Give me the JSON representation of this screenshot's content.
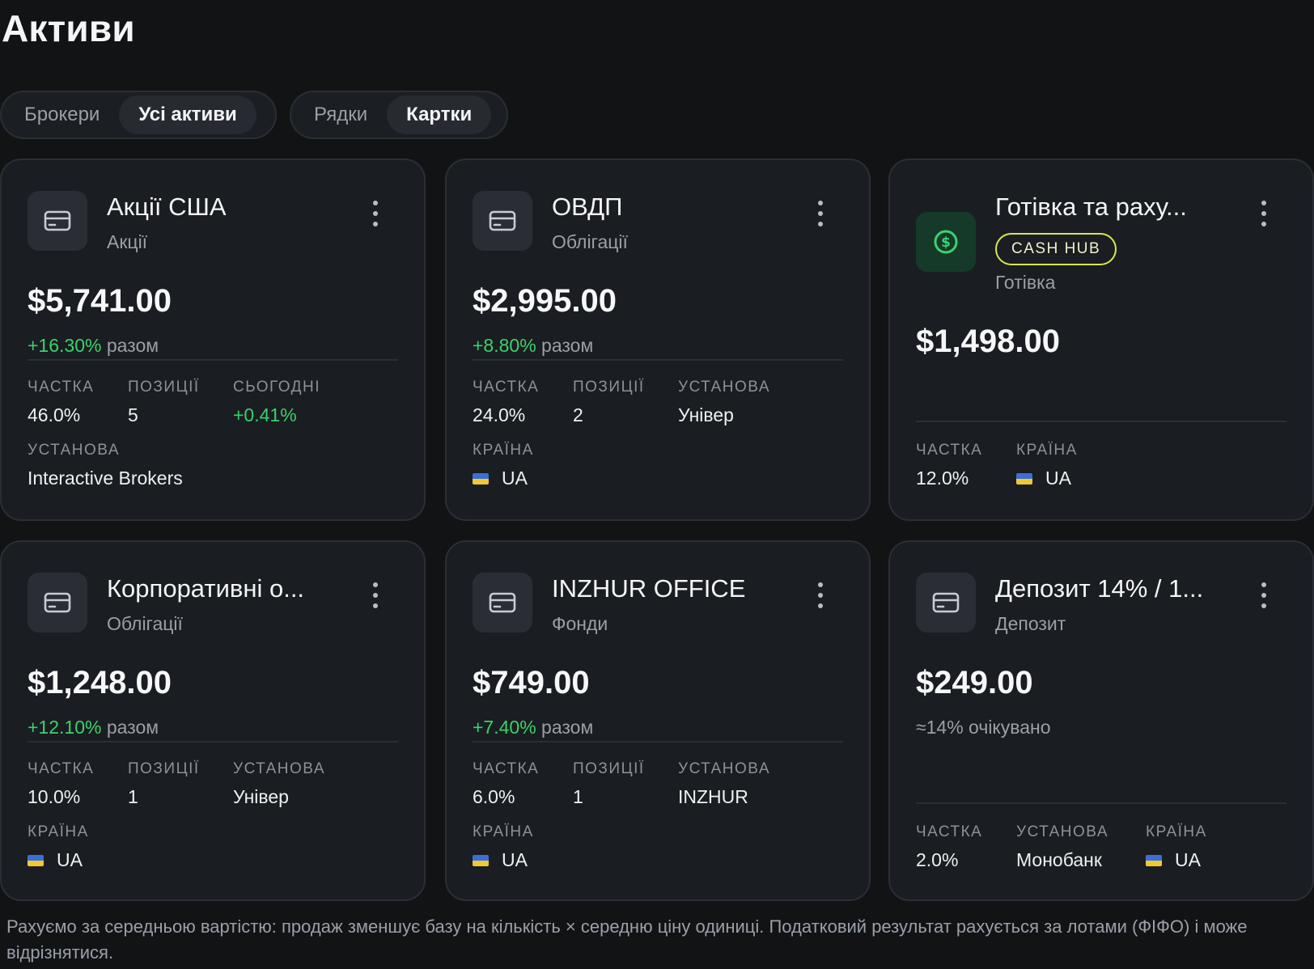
{
  "page": {
    "title": "Активи"
  },
  "view_toggle": {
    "group_by": {
      "brokers": "Брокери",
      "all_assets": "Усі активи",
      "active": "all_assets"
    },
    "layout": {
      "rows": "Рядки",
      "cards": "Картки",
      "active": "cards"
    }
  },
  "labels": {
    "share": "Частка",
    "positions": "Позиції",
    "today": "Сьогодні",
    "institution": "Установа",
    "country": "Країна",
    "total_suffix": "разом"
  },
  "cards": [
    {
      "name": "Акції США",
      "type": "Акції",
      "amount": "$5,741.00",
      "change": "+16.30%",
      "share": "46.0%",
      "positions": "5",
      "today": "+0.41%",
      "institution": "Interactive Brokers",
      "icon": "card-icon"
    },
    {
      "name": "ОВДП",
      "type": "Облігації",
      "amount": "$2,995.00",
      "change": "+8.80%",
      "share": "24.0%",
      "positions": "2",
      "institution": "Універ",
      "country": "UA",
      "icon": "card-icon"
    },
    {
      "name": "Готівка та раху...",
      "badge": "CASH HUB",
      "type": "Готівка",
      "amount": "$1,498.00",
      "share": "12.0%",
      "country": "UA",
      "icon": "dollar-circle-icon"
    },
    {
      "name": "Корпоративні о...",
      "type": "Облігації",
      "amount": "$1,248.00",
      "change": "+12.10%",
      "share": "10.0%",
      "positions": "1",
      "institution": "Універ",
      "country": "UA",
      "icon": "card-icon"
    },
    {
      "name": "INZHUR OFFICE",
      "type": "Фонди",
      "amount": "$749.00",
      "change": "+7.40%",
      "share": "6.0%",
      "positions": "1",
      "institution": "INZHUR",
      "country": "UA",
      "icon": "card-icon"
    },
    {
      "name": "Депозит 14% / 1...",
      "type": "Депозит",
      "amount": "$249.00",
      "expected": "≈14% очікувано",
      "share": "2.0%",
      "institution": "Монобанк",
      "country": "UA",
      "icon": "card-icon"
    }
  ],
  "colors": {
    "background": "#111315",
    "card": "#1a1d21",
    "positive": "#39d36b",
    "badge_border": "#d7e94a"
  },
  "footnote": "Рахуємо за середньою вартістю: продаж зменшує базу на кількість × середню ціну одиниці. Податковий результат рахується за лотами (ФІФО) і може відрізнятися."
}
